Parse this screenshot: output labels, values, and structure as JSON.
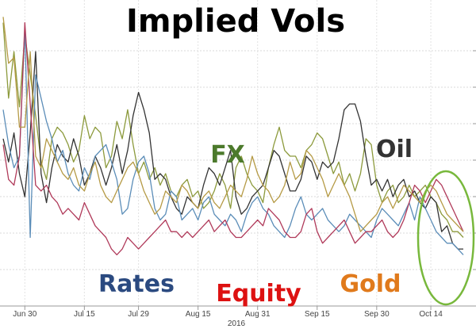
{
  "chart_data": {
    "type": "line",
    "title": "Implied Vols",
    "year_label": "2016",
    "x_ticks": [
      "Jun 30",
      "Jul 15",
      "Jul 29",
      "Aug 15",
      "Aug 31",
      "Sep 15",
      "Sep 30",
      "Oct 14"
    ],
    "x_tick_index": [
      4,
      15,
      25,
      36,
      47,
      58,
      69,
      79
    ],
    "grid": true,
    "ylim": [
      0,
      100
    ],
    "series": [
      {
        "name": "FX",
        "color": "#8c9a3c",
        "label_color": "#4c7a2c",
        "values": [
          96,
          70,
          86,
          67,
          92,
          78,
          64,
          48,
          42,
          56,
          60,
          58,
          54,
          48,
          52,
          64,
          56,
          60,
          58,
          46,
          50,
          62,
          56,
          66,
          54,
          44,
          48,
          42,
          46,
          40,
          44,
          38,
          36,
          40,
          42,
          36,
          38,
          32,
          34,
          38,
          44,
          40,
          32,
          46,
          50,
          44,
          40,
          38,
          34,
          46,
          54,
          60,
          52,
          50,
          50,
          46,
          52,
          54,
          58,
          56,
          50,
          44,
          48,
          40,
          44,
          38,
          44,
          56,
          54,
          40,
          34,
          38,
          40,
          34,
          36,
          40,
          36,
          38,
          40,
          36,
          34,
          30,
          28,
          24,
          24,
          22
        ]
      },
      {
        "name": "Oil",
        "color": "#333333",
        "label_color": "#333333",
        "values": [
          56,
          48,
          58,
          44,
          36,
          58,
          86,
          44,
          34,
          46,
          54,
          50,
          48,
          56,
          50,
          40,
          44,
          50,
          46,
          40,
          46,
          54,
          44,
          52,
          64,
          72,
          66,
          58,
          42,
          44,
          42,
          36,
          32,
          30,
          36,
          34,
          32,
          40,
          46,
          44,
          40,
          46,
          52,
          36,
          30,
          32,
          36,
          38,
          40,
          46,
          52,
          50,
          44,
          38,
          38,
          42,
          50,
          48,
          42,
          48,
          46,
          48,
          56,
          66,
          68,
          68,
          62,
          50,
          40,
          42,
          38,
          42,
          36,
          40,
          42,
          36,
          38,
          34,
          32,
          36,
          34,
          24,
          26,
          20,
          18,
          18
        ]
      },
      {
        "name": "Rates",
        "color": "#5b8db8",
        "label_color": "#2b4a80",
        "values": [
          66,
          54,
          46,
          50,
          94,
          22,
          78,
          70,
          62,
          56,
          48,
          52,
          44,
          40,
          38,
          46,
          42,
          50,
          52,
          54,
          48,
          42,
          30,
          32,
          42,
          48,
          50,
          44,
          32,
          28,
          30,
          38,
          36,
          28,
          30,
          32,
          28,
          34,
          36,
          30,
          28,
          26,
          30,
          28,
          24,
          30,
          34,
          36,
          32,
          30,
          26,
          24,
          22,
          26,
          32,
          36,
          30,
          28,
          30,
          32,
          28,
          26,
          24,
          26,
          30,
          28,
          26,
          24,
          22,
          28,
          32,
          30,
          28,
          26,
          30,
          34,
          28,
          36,
          32,
          28,
          24,
          22,
          20,
          20,
          18,
          16
        ]
      },
      {
        "name": "Equity",
        "color": "#b03a5a",
        "label_color": "#dd1111",
        "values": [
          54,
          42,
          40,
          50,
          96,
          68,
          40,
          38,
          40,
          36,
          34,
          30,
          32,
          30,
          28,
          34,
          30,
          26,
          24,
          22,
          18,
          16,
          18,
          22,
          20,
          18,
          20,
          22,
          24,
          26,
          28,
          24,
          24,
          22,
          24,
          22,
          24,
          26,
          28,
          24,
          26,
          28,
          24,
          22,
          22,
          24,
          26,
          28,
          26,
          32,
          30,
          28,
          24,
          22,
          22,
          24,
          30,
          32,
          24,
          20,
          22,
          24,
          26,
          28,
          24,
          20,
          22,
          24,
          24,
          26,
          28,
          24,
          22,
          24,
          28,
          34,
          40,
          38,
          34,
          38,
          42,
          40,
          36,
          32,
          28,
          24
        ]
      },
      {
        "name": "Gold",
        "color": "#b59a45",
        "label_color": "#e07a1c",
        "values": [
          98,
          82,
          84,
          60,
          60,
          86,
          50,
          46,
          56,
          52,
          48,
          44,
          42,
          46,
          40,
          38,
          44,
          48,
          40,
          36,
          34,
          38,
          42,
          46,
          48,
          44,
          38,
          34,
          30,
          32,
          38,
          36,
          34,
          40,
          38,
          34,
          32,
          36,
          38,
          34,
          32,
          36,
          40,
          38,
          36,
          42,
          50,
          44,
          40,
          38,
          34,
          36,
          40,
          48,
          42,
          44,
          52,
          50,
          46,
          42,
          36,
          40,
          44,
          40,
          36,
          30,
          24,
          26,
          28,
          30,
          34,
          36,
          32,
          36,
          40,
          38,
          36,
          34,
          38,
          40,
          38,
          34,
          30,
          28,
          26,
          24
        ]
      }
    ],
    "annotations": [
      "FX",
      "Oil",
      "Rates",
      "Equity",
      "Gold"
    ]
  }
}
